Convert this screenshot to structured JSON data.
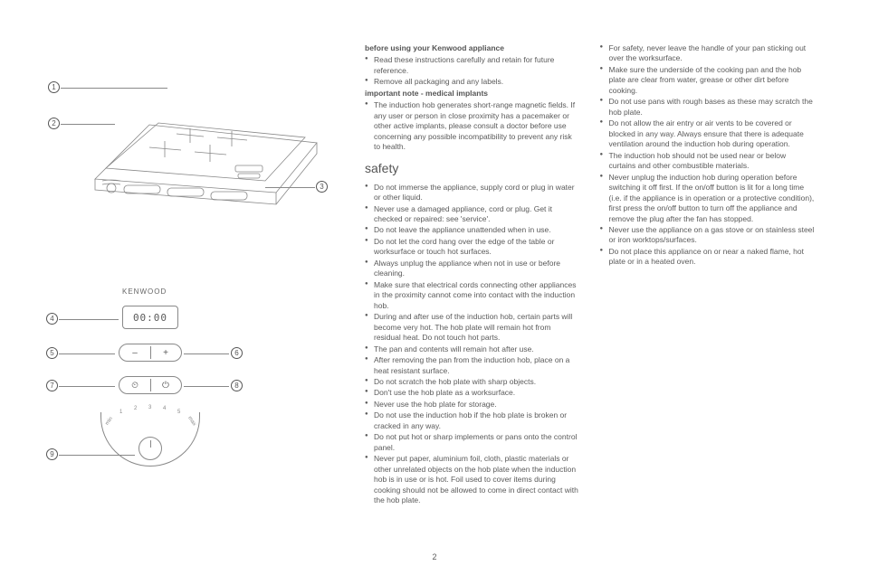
{
  "page_number": "2",
  "illustration": {
    "brand": "KENWOOD",
    "display": "00:00",
    "callouts": [
      "1",
      "2",
      "3",
      "4",
      "5",
      "6",
      "7",
      "8",
      "9"
    ],
    "minus": "–",
    "plus": "+",
    "timer_icon": "⏲",
    "power_icon": "⏻",
    "knob_marks": [
      "min",
      "1",
      "2",
      "3",
      "4",
      "5",
      "max"
    ]
  },
  "sections": [
    {
      "type": "heading",
      "text": "before using your Kenwood appliance"
    },
    {
      "type": "list",
      "items": [
        "Read these instructions carefully and retain for future reference.",
        "Remove all packaging and any labels."
      ]
    },
    {
      "type": "heading",
      "text": "important note - medical implants"
    },
    {
      "type": "list",
      "items": [
        "The induction hob generates short-range magnetic fields. If any user or person in close proximity has a pacemaker or other active implants, please consult a doctor before use concerning any possible incompatibility to prevent any risk to health."
      ]
    },
    {
      "type": "big",
      "text": "safety"
    },
    {
      "type": "list",
      "items": [
        "Do not immerse the appliance, supply cord or plug in water or other liquid.",
        "Never use a damaged appliance, cord or plug. Get it checked or repaired: see 'service'.",
        "Do not leave the appliance unattended when in use.",
        "Do not let the cord hang over the edge of the table or worksurface or touch hot surfaces.",
        "Always unplug the appliance when not in use or before cleaning.",
        "Make sure that electrical cords connecting other appliances in the proximity cannot come into contact with the induction hob.",
        "During and after use of the induction hob, certain parts will become very hot. The hob plate will remain hot from residual heat. Do not touch hot parts.",
        "The pan and contents will remain hot after use.",
        "After removing the pan from the induction hob, place on a heat resistant surface.",
        "Do not scratch the hob plate with sharp objects.",
        "Don't use the hob plate as a worksurface.",
        "Never use the hob plate for storage.",
        "Do not use the induction hob if the hob plate is broken or cracked in any way.",
        "Do not put hot or sharp implements or pans onto the control panel.",
        "Never put paper, aluminium foil, cloth, plastic materials or other unrelated objects on the hob plate when the induction hob is in use or is hot. Foil used to cover items during cooking should not be allowed to come in direct contact with the hob plate.",
        "For safety, never leave the handle of your pan sticking out over the worksurface.",
        "Make sure the underside of the cooking pan and the hob plate are clear from water, grease or other dirt before cooking.",
        "Do not use pans with rough bases as these may scratch the hob plate.",
        "Do not allow the air entry or air vents to be covered or blocked in any way. Always ensure that there is adequate ventilation around the induction hob during operation.",
        "The induction hob should not be used near or below curtains and other combustible materials.",
        "Never unplug the induction hob during operation before switching it off first. If the on/off button is lit for a long time (i.e. if the appliance is in operation or a protective condition), first press the on/off button to turn off the appliance and remove the plug after the fan has stopped.",
        "Never use the appliance on a gas stove or on stainless steel or iron worktops/surfaces.",
        "Do not place this appliance on or near a naked flame, hot plate or in a heated oven."
      ]
    }
  ]
}
